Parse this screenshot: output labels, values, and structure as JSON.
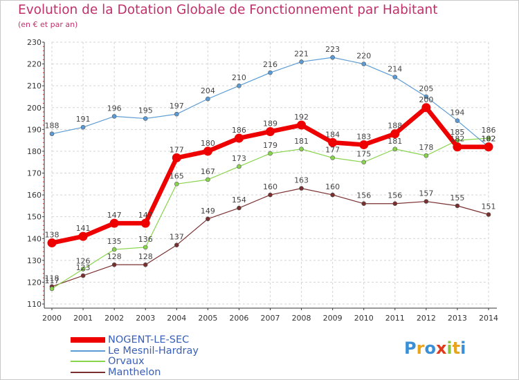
{
  "chart_data": {
    "type": "line",
    "title": "Evolution de la Dotation Globale de Fonctionnement par Habitant",
    "subtitle": "(en € et par an)",
    "xlabel": "",
    "ylabel": "",
    "ylim": [
      110,
      230
    ],
    "yticks": [
      110,
      120,
      130,
      140,
      150,
      160,
      170,
      180,
      190,
      200,
      210,
      220,
      230
    ],
    "categories": [
      "2000",
      "2001",
      "2002",
      "2003",
      "2004",
      "2005",
      "2006",
      "2007",
      "2008",
      "2009",
      "2010",
      "2011",
      "2012",
      "2013",
      "2014"
    ],
    "series": [
      {
        "name": "NOGENT-LE-SEC",
        "color": "#ee0000",
        "values": [
          138,
          141,
          147,
          147,
          177,
          180,
          186,
          189,
          192,
          184,
          183,
          188,
          200,
          182,
          182
        ]
      },
      {
        "name": "Le Mesnil-Hardray",
        "color": "#5b9bd5",
        "values": [
          188,
          191,
          196,
          195,
          197,
          204,
          210,
          216,
          221,
          223,
          220,
          214,
          205,
          194,
          182
        ]
      },
      {
        "name": "Orvaux",
        "color": "#88d44c",
        "values": [
          117,
          126,
          135,
          136,
          165,
          167,
          173,
          179,
          181,
          177,
          175,
          181,
          178,
          185,
          186
        ]
      },
      {
        "name": "Manthelon",
        "color": "#7a2f2f",
        "values": [
          118,
          123,
          128,
          128,
          137,
          149,
          154,
          160,
          163,
          160,
          156,
          156,
          157,
          155,
          151
        ]
      }
    ]
  },
  "logo": {
    "letters": [
      "P",
      "r",
      "o",
      "x",
      "i",
      "t",
      "i"
    ],
    "colors": [
      "#3a8fd6",
      "#e8a41a",
      "#3a8fd6",
      "#e03a1a",
      "#8bc440",
      "#e8a41a",
      "#3a8fd6"
    ]
  }
}
